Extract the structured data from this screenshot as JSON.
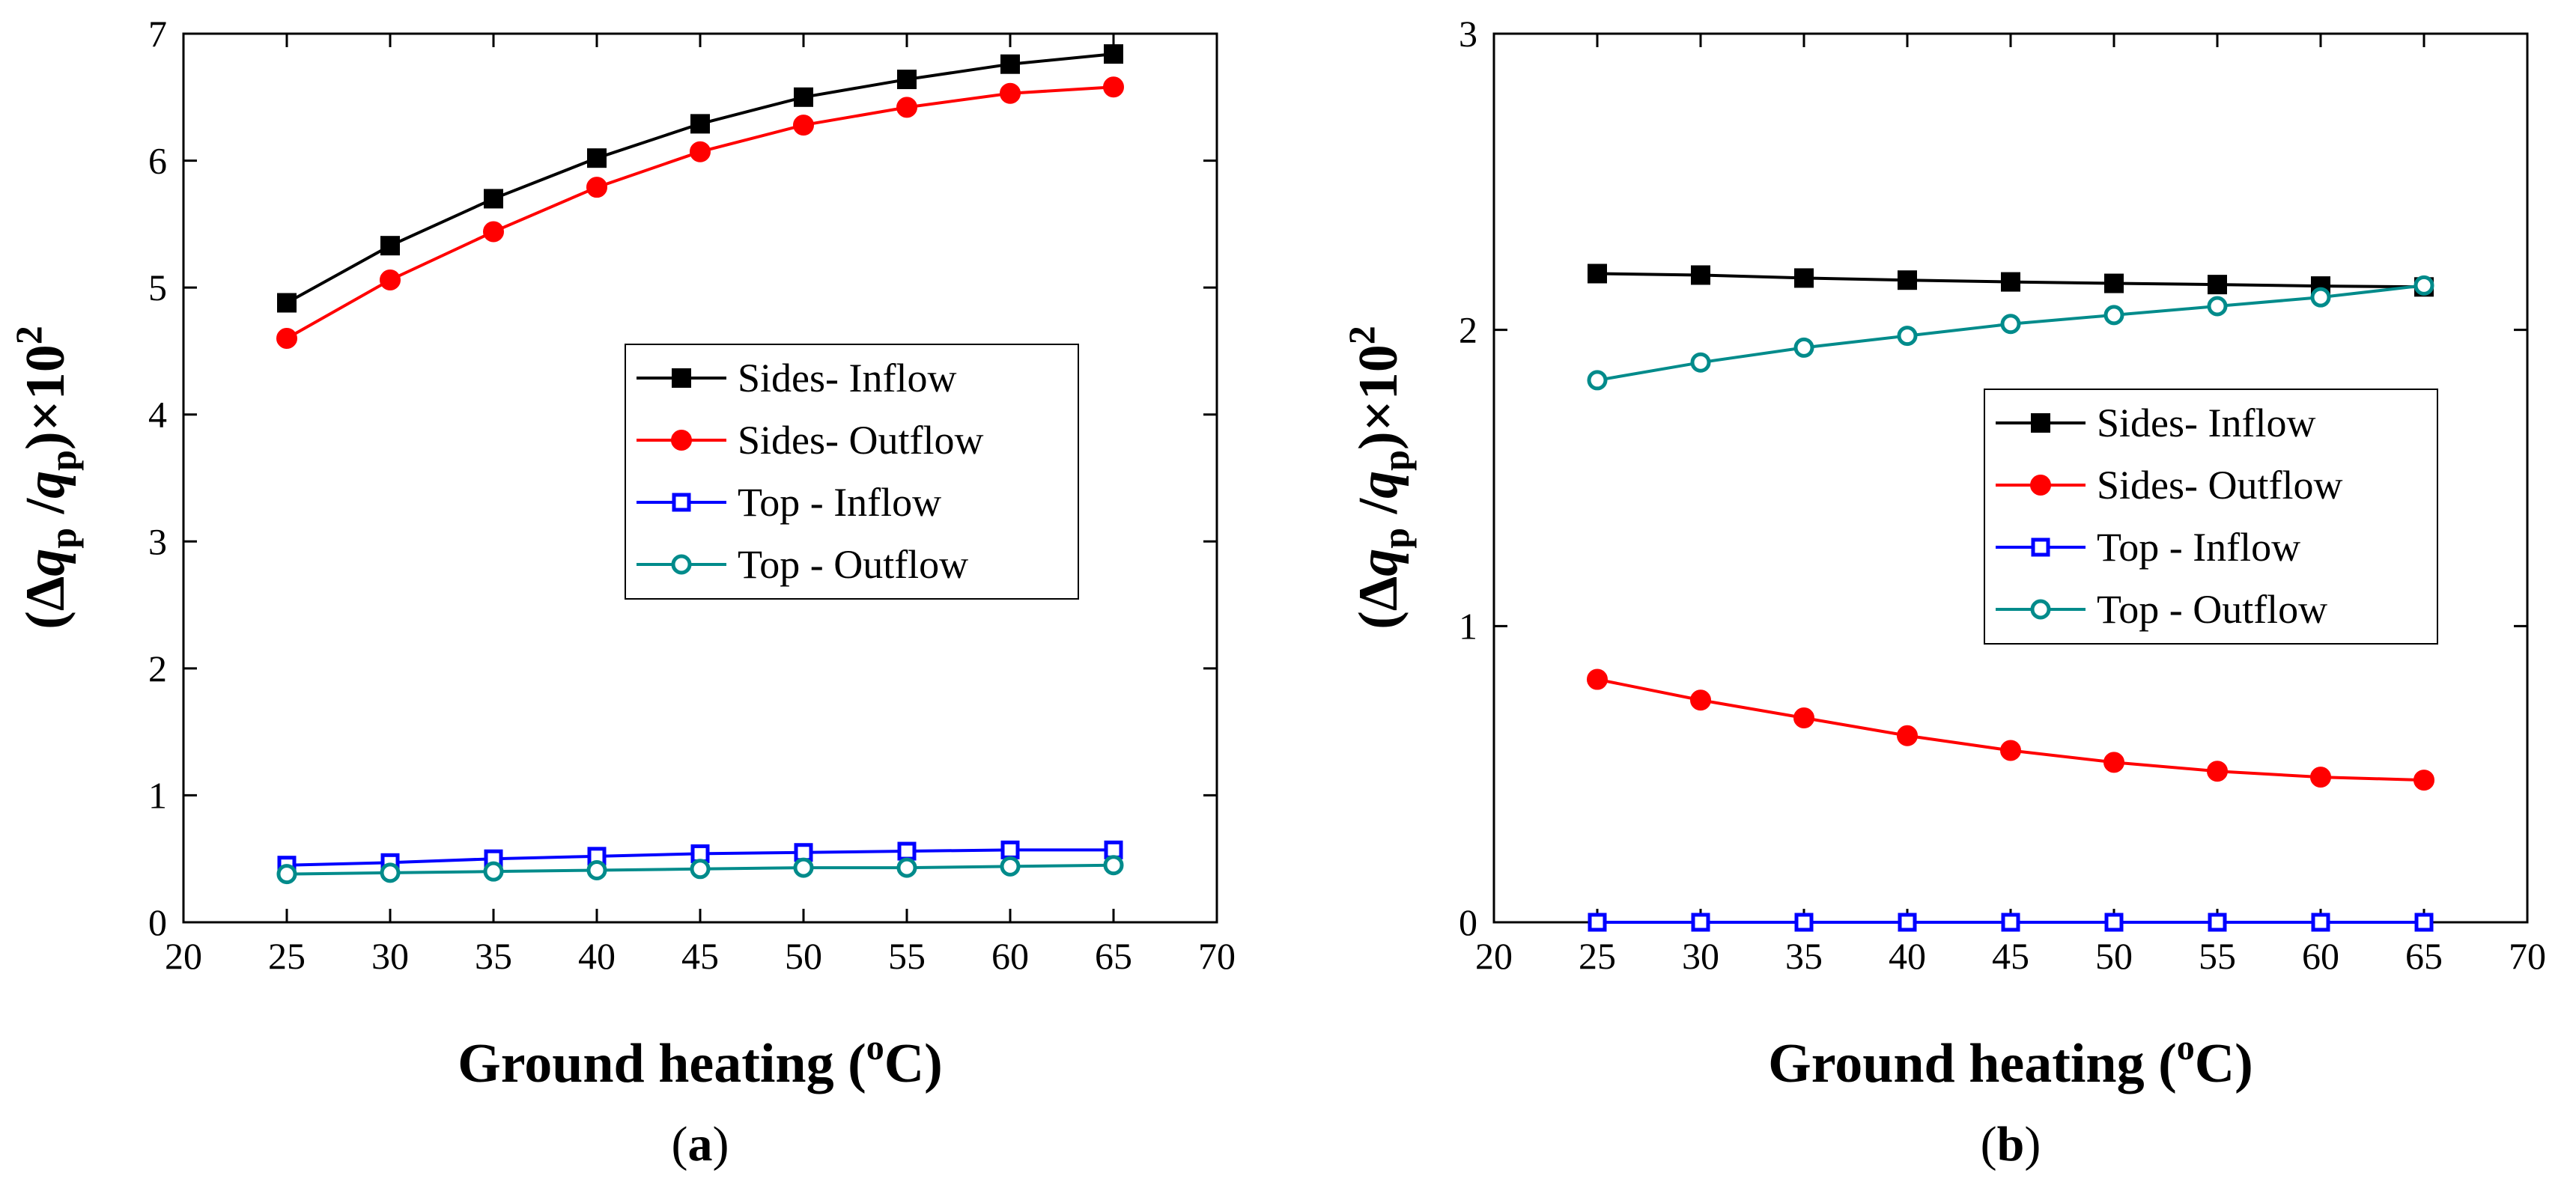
{
  "chart_data": [
    {
      "panel_label": "a",
      "type": "line",
      "xlabel": "Ground heating (°C)",
      "xlabel_main": "Ground heating (",
      "xlabel_sup": "o",
      "xlabel_tail": "C)",
      "ylabel": "(Δq_p/q_p)×10²",
      "xlim": [
        20,
        70
      ],
      "ylim": [
        0,
        7
      ],
      "xticks": [
        20,
        25,
        30,
        35,
        40,
        45,
        50,
        55,
        60,
        65,
        70
      ],
      "yticks": [
        0,
        1,
        2,
        3,
        4,
        5,
        6,
        7
      ],
      "x": [
        25,
        30,
        35,
        40,
        45,
        50,
        55,
        60,
        65
      ],
      "legend_position": "center-right",
      "series": [
        {
          "name": "Sides- Inflow",
          "color": "#000000",
          "marker": "square-filled",
          "values": [
            4.88,
            5.33,
            5.7,
            6.02,
            6.29,
            6.5,
            6.64,
            6.76,
            6.84
          ]
        },
        {
          "name": "Sides- Outflow",
          "color": "#ff0000",
          "marker": "circle-filled",
          "values": [
            4.6,
            5.06,
            5.44,
            5.79,
            6.07,
            6.28,
            6.42,
            6.53,
            6.58
          ]
        },
        {
          "name": "Top  - Inflow",
          "color": "#0000ff",
          "marker": "square-open",
          "values": [
            0.45,
            0.47,
            0.5,
            0.52,
            0.54,
            0.55,
            0.56,
            0.57,
            0.57
          ]
        },
        {
          "name": "Top  - Outflow",
          "color": "#008b8b",
          "marker": "circle-open",
          "values": [
            0.38,
            0.39,
            0.4,
            0.41,
            0.42,
            0.43,
            0.43,
            0.44,
            0.45
          ]
        }
      ]
    },
    {
      "panel_label": "b",
      "type": "line",
      "xlabel": "Ground heating (°C)",
      "xlabel_main": "Ground heating (",
      "xlabel_sup": "o",
      "xlabel_tail": "C)",
      "ylabel": "(Δq_p/q_p)×10²",
      "xlim": [
        20,
        70
      ],
      "ylim": [
        0,
        3
      ],
      "xticks": [
        20,
        25,
        30,
        35,
        40,
        45,
        50,
        55,
        60,
        65,
        70
      ],
      "yticks": [
        0,
        1,
        2,
        3
      ],
      "x": [
        25,
        30,
        35,
        40,
        45,
        50,
        55,
        60,
        65
      ],
      "legend_position": "center-right",
      "series": [
        {
          "name": "Sides- Inflow",
          "color": "#000000",
          "marker": "square-filled",
          "values": [
            2.19,
            2.185,
            2.175,
            2.168,
            2.162,
            2.157,
            2.153,
            2.148,
            2.145
          ]
        },
        {
          "name": "Sides- Outflow",
          "color": "#ff0000",
          "marker": "circle-filled",
          "values": [
            0.82,
            0.75,
            0.69,
            0.63,
            0.58,
            0.54,
            0.51,
            0.49,
            0.48
          ]
        },
        {
          "name": "Top  - Inflow",
          "color": "#0000ff",
          "marker": "square-open",
          "values": [
            0.0,
            0.0,
            0.0,
            0.0,
            0.0,
            0.0,
            0.0,
            0.0,
            0.0
          ]
        },
        {
          "name": "Top  - Outflow",
          "color": "#008b8b",
          "marker": "circle-open",
          "values": [
            1.83,
            1.89,
            1.94,
            1.98,
            2.02,
            2.05,
            2.08,
            2.11,
            2.15
          ]
        }
      ]
    }
  ]
}
